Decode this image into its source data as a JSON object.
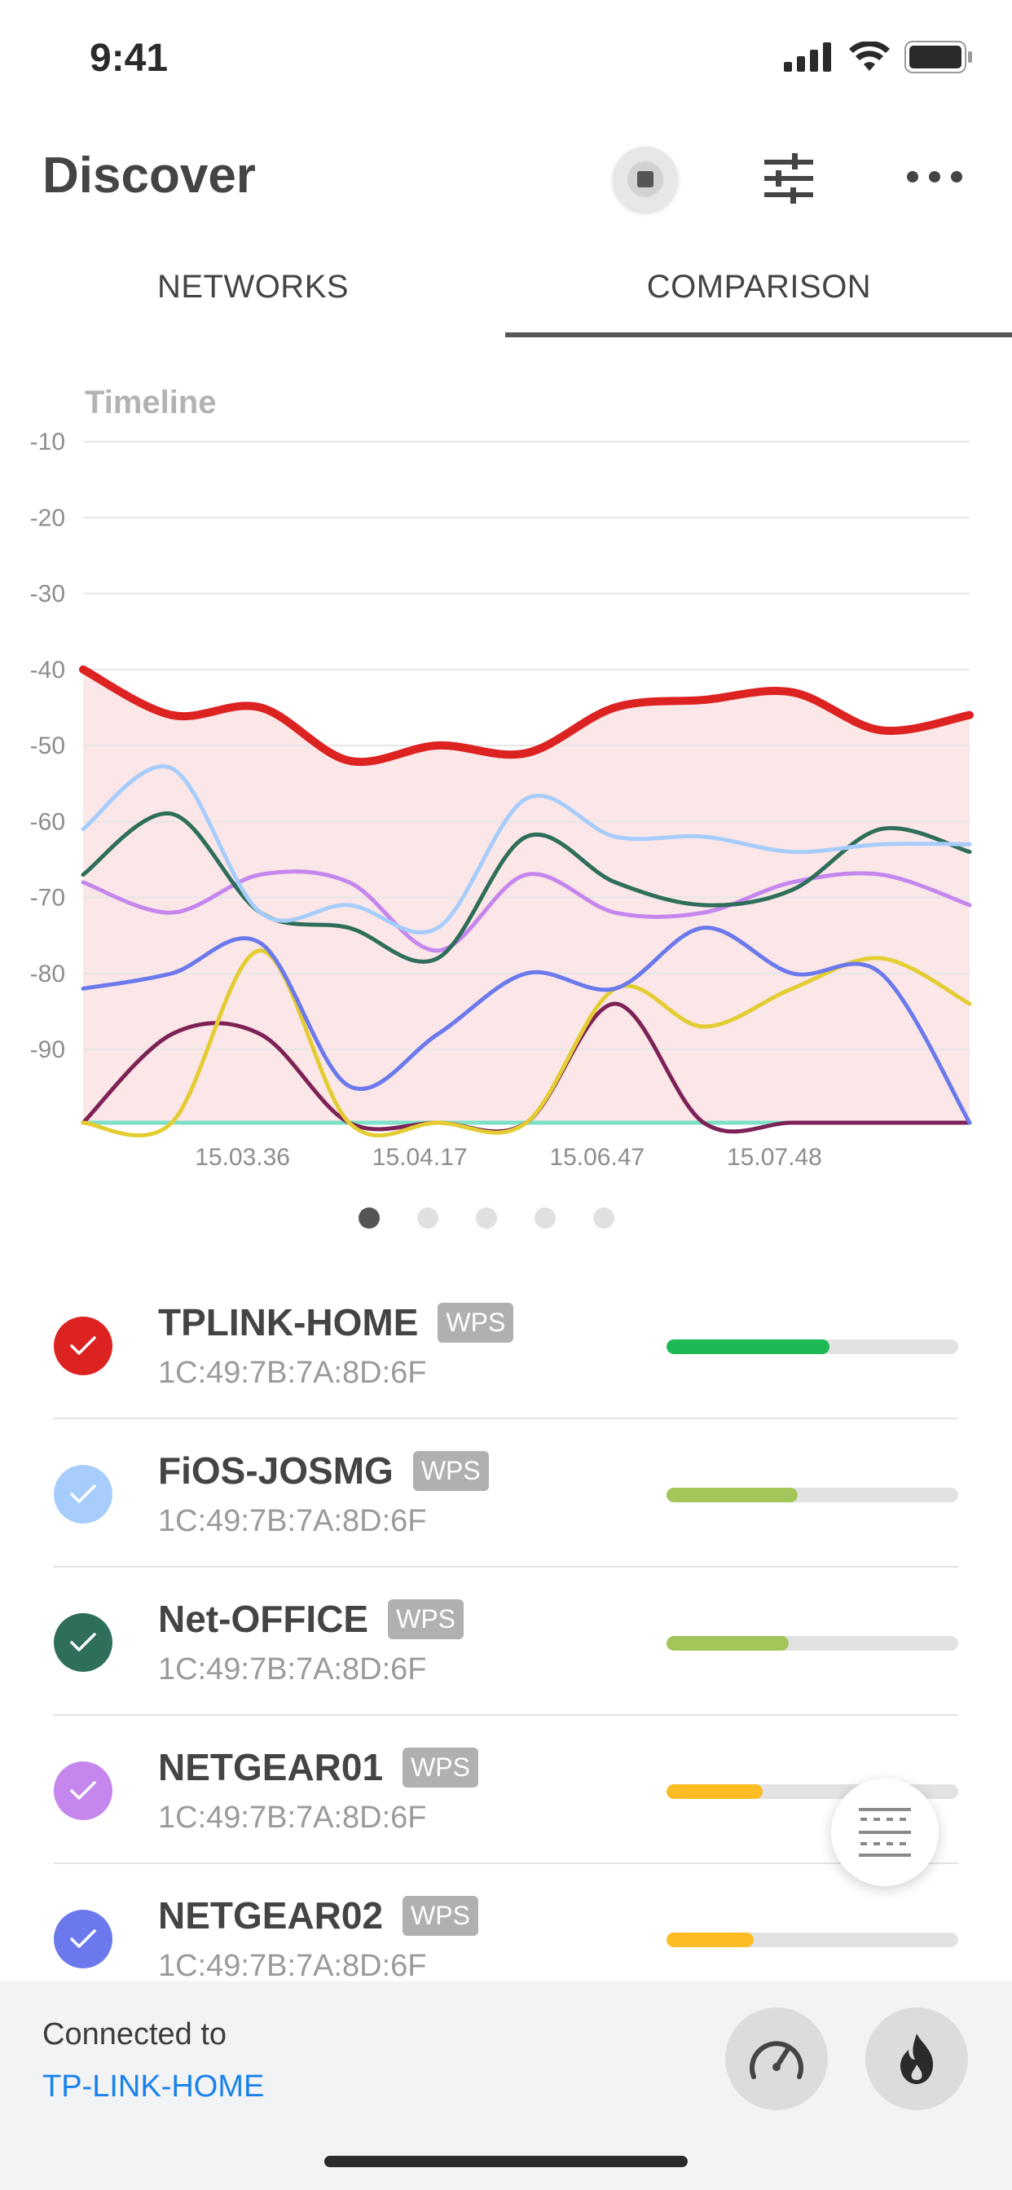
{
  "status_bar": {
    "time": "9:41"
  },
  "header": {
    "title": "Discover"
  },
  "tabs": [
    {
      "label": "NETWORKS",
      "active": false
    },
    {
      "label": "COMPARISON",
      "active": true
    }
  ],
  "chart": {
    "title": "Timeline",
    "pager": {
      "count": 5,
      "active_index": 0
    }
  },
  "chart_data": {
    "type": "line",
    "title": "Timeline",
    "xlabel": "",
    "ylabel": "",
    "ylim": [
      -100,
      -10
    ],
    "yticks": [
      -10,
      -20,
      -30,
      -40,
      -50,
      -60,
      -70,
      -80,
      -90
    ],
    "x_tick_labels": [
      "15.03.36",
      "15.04.17",
      "15.06.47",
      "15.07.48"
    ],
    "x_tick_index": [
      2.0,
      4.0,
      6.0,
      8.0
    ],
    "x_count": 11,
    "grid": true,
    "series": [
      {
        "name": "TPLINK-HOME",
        "color": "#dd2222",
        "fill": true,
        "values": [
          -40,
          -46,
          -45,
          -52,
          -50,
          -51,
          -45,
          -44,
          -43,
          -48,
          -46
        ]
      },
      {
        "name": "FiOS-JOSMG",
        "color": "#a7cdfc",
        "values": [
          -61,
          -53,
          -72,
          -71,
          -74,
          -57,
          -62,
          -62,
          -64,
          -63,
          -63
        ]
      },
      {
        "name": "Net-OFFICE",
        "color": "#2e6e5a",
        "values": [
          -67,
          -59,
          -72,
          -74,
          -78,
          -62,
          -68,
          -71,
          -69,
          -61,
          -64
        ]
      },
      {
        "name": "NETGEAR01",
        "color": "#c586ee",
        "values": [
          -68,
          -72,
          -67,
          -68,
          -77,
          -67,
          -72,
          -72,
          -68,
          -67,
          -71
        ]
      },
      {
        "name": "NETGEAR02",
        "color": "#6b79ec",
        "values": [
          -82,
          -80,
          -76,
          -95,
          -88,
          -80,
          -82,
          -74,
          -80,
          -80,
          -100
        ]
      },
      {
        "name": "",
        "color": "#e4cd33",
        "values": [
          -100,
          -100,
          -77,
          -100,
          -100,
          -100,
          -82,
          -87,
          -82,
          -78,
          -84
        ]
      },
      {
        "name": "",
        "color": "#7d2256",
        "values": [
          -100,
          -88,
          -88,
          -100,
          -100,
          -100,
          -84,
          -100,
          -100,
          -100,
          -100
        ]
      },
      {
        "name": "",
        "color": "#7fe0c8",
        "values": [
          -100,
          -100,
          -100,
          -100,
          -100,
          -100,
          -100,
          -100,
          -100,
          -100,
          -100
        ]
      }
    ]
  },
  "networks": [
    {
      "name": "TPLINK-HOME",
      "badge": "WPS",
      "mac": "1C:49:7B:7A:8D:6F",
      "color": "#dd2222",
      "signal": 0.56,
      "bar_color": "#1db954"
    },
    {
      "name": "FiOS-JOSMG",
      "badge": "WPS",
      "mac": "1C:49:7B:7A:8D:6F",
      "color": "#a7cdfc",
      "signal": 0.45,
      "bar_color": "#a3c65a"
    },
    {
      "name": "Net-OFFICE",
      "badge": "WPS",
      "mac": "1C:49:7B:7A:8D:6F",
      "color": "#2e6e5a",
      "signal": 0.42,
      "bar_color": "#a3c65a"
    },
    {
      "name": "NETGEAR01",
      "badge": "WPS",
      "mac": "1C:49:7B:7A:8D:6F",
      "color": "#c586ee",
      "signal": 0.33,
      "bar_color": "#fbbd23"
    },
    {
      "name": "NETGEAR02",
      "badge": "WPS",
      "mac": "1C:49:7B:7A:8D:6F",
      "color": "#6b79ec",
      "signal": 0.3,
      "bar_color": "#fbbd23"
    }
  ],
  "footer": {
    "connected_label": "Connected to",
    "connected_network": "TP-LINK-HOME"
  },
  "icons": {
    "record": "record-icon",
    "filter": "sliders-icon",
    "more": "more-horizontal-icon",
    "floating": "grid-toggle-icon",
    "speed": "speedometer-icon",
    "fire": "flame-icon"
  }
}
